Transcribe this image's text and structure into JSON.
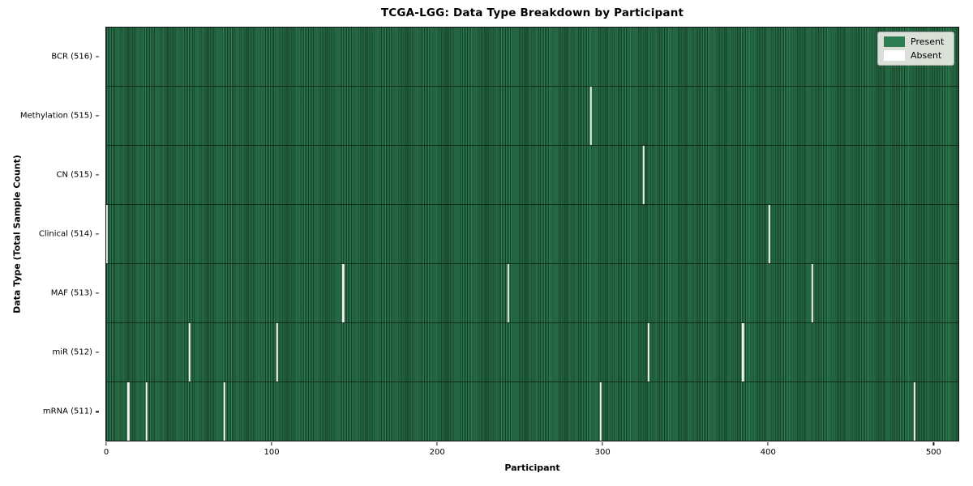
{
  "chart_data": {
    "type": "heatmap",
    "title": "TCGA-LGG: Data Type Breakdown by Participant",
    "xlabel": "Participant",
    "ylabel": "Data Type (Total Sample Count)",
    "n_participants": 516,
    "xlim": [
      -0.5,
      515.5
    ],
    "x_ticks": [
      0,
      100,
      200,
      300,
      400,
      500
    ],
    "grid": false,
    "legend_position": "upper right",
    "legend": [
      {
        "label": "Present",
        "color": "#2e7d52"
      },
      {
        "label": "Absent",
        "color": "#ffffff"
      }
    ],
    "colors": {
      "present": "#2e7d52",
      "present_edge": "#1b4c30",
      "absent": "#f1f2ee",
      "row_separator": "#0a2114",
      "legend_bg": "#e9ece5"
    },
    "rows": [
      {
        "data_type": "BCR",
        "label": "BCR (516)",
        "present_count": 516,
        "absent_participants": []
      },
      {
        "data_type": "Methylation",
        "label": "Methylation (515)",
        "present_count": 515,
        "absent_participants": [
          293
        ]
      },
      {
        "data_type": "CN",
        "label": "CN (515)",
        "present_count": 515,
        "absent_participants": [
          325
        ]
      },
      {
        "data_type": "Clinical",
        "label": "Clinical (514)",
        "present_count": 514,
        "absent_participants": [
          0,
          401
        ]
      },
      {
        "data_type": "MAF",
        "label": "MAF (513)",
        "present_count": 513,
        "absent_participants": [
          143,
          243,
          427
        ]
      },
      {
        "data_type": "miR",
        "label": "miR (512)",
        "present_count": 512,
        "absent_participants": [
          50,
          103,
          328,
          385
        ]
      },
      {
        "data_type": "mRNA",
        "label": "mRNA (511)",
        "present_count": 511,
        "absent_participants": [
          13,
          24,
          71,
          299,
          489
        ]
      }
    ]
  }
}
